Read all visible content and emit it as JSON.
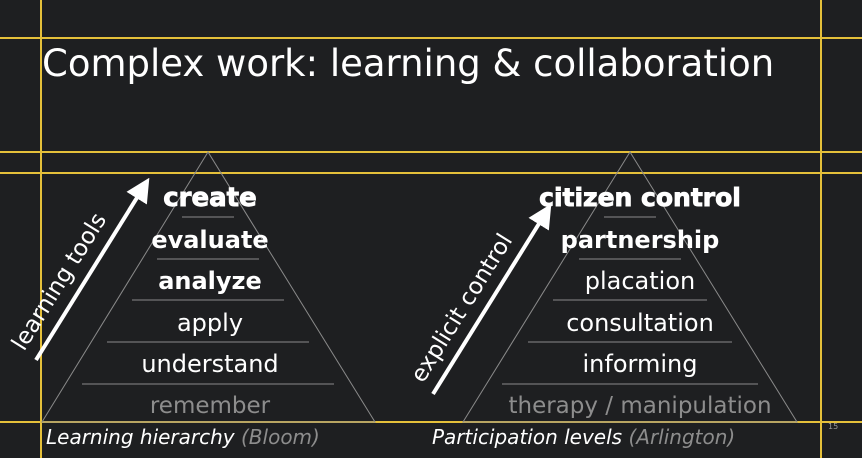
{
  "slide": {
    "title": "Complex work: learning & collaboration",
    "page_number": "15"
  },
  "colors": {
    "background": "#1e1f21",
    "guide": "#e5c03a",
    "text": "#ffffff",
    "muted": "#8d8d8d",
    "pyramid_line": "#8a8a8a"
  },
  "bloom": {
    "arrow_label": "learning tools",
    "caption": "Learning hierarchy",
    "source": "(Bloom)",
    "levels": [
      {
        "label": "create",
        "style": "heavy"
      },
      {
        "label": "evaluate",
        "style": "bold"
      },
      {
        "label": "analyze",
        "style": "bold"
      },
      {
        "label": "apply",
        "style": "light"
      },
      {
        "label": "understand",
        "style": "light"
      },
      {
        "label": "remember",
        "style": "muted"
      }
    ]
  },
  "arnstein": {
    "arrow_label": "explicit control",
    "caption": "Participation levels",
    "source": "(Arlington)",
    "levels": [
      {
        "label": "citizen control",
        "style": "heavy"
      },
      {
        "label": "partnership",
        "style": "bold"
      },
      {
        "label": "placation",
        "style": "light"
      },
      {
        "label": "consultation",
        "style": "light"
      },
      {
        "label": "informing",
        "style": "light"
      },
      {
        "label": "therapy / manipulation",
        "style": "muted"
      }
    ]
  }
}
